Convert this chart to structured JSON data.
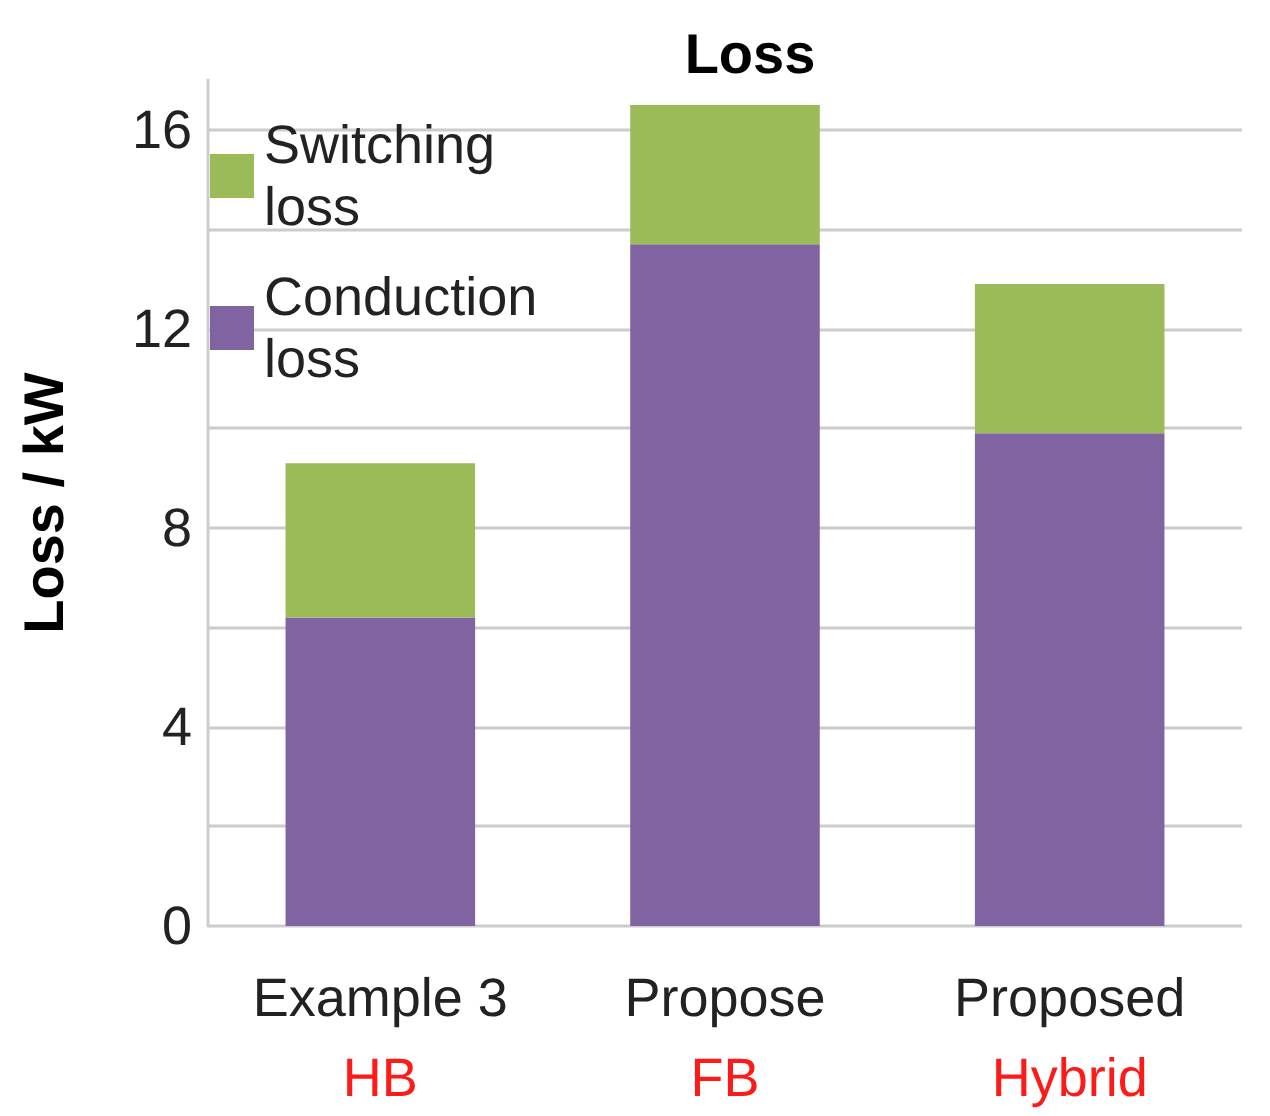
{
  "chart_data": {
    "type": "bar",
    "title": "Loss",
    "ylabel": "Loss / kW",
    "categories": [
      "Example 3\nHB",
      "Propose\nFB",
      "Proposed\nHybrid"
    ],
    "stacked": true,
    "series": [
      {
        "name": "Conduction\nloss",
        "color": "#8064a2",
        "values": [
          6.2,
          13.7,
          9.9
        ]
      },
      {
        "name": "Switching\nloss",
        "color": "#9bbb59",
        "values": [
          3.1,
          2.8,
          3.0
        ]
      }
    ],
    "ylim": [
      0,
      17
    ],
    "yticks": [
      0,
      {
        "value": 2,
        "label": null
      },
      4,
      {
        "value": 6,
        "label": null
      },
      8,
      {
        "value": 10,
        "label": null
      },
      12,
      {
        "value": 14,
        "label": null
      },
      16
    ],
    "grid": "y",
    "legend": "top left"
  }
}
